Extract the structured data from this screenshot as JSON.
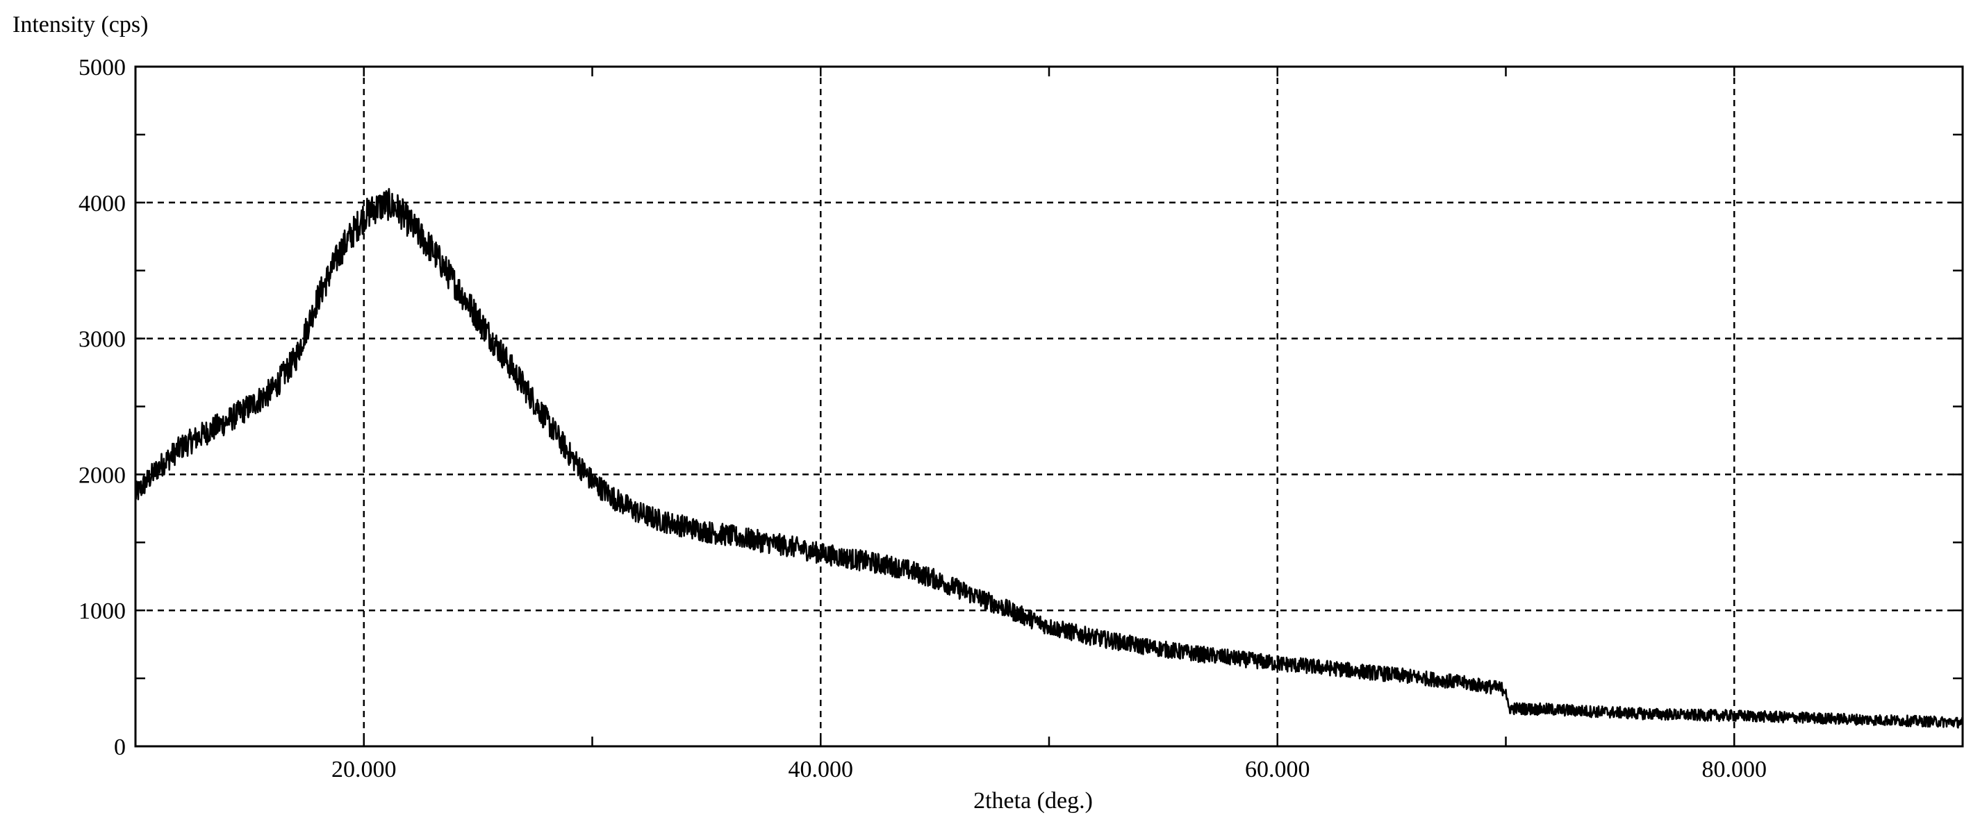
{
  "chart_data": {
    "type": "line",
    "title": "",
    "ylabel": "Intensity (cps)",
    "xlabel": "2theta (deg.)",
    "xlim": [
      10,
      90
    ],
    "ylim": [
      0,
      5000
    ],
    "x_major_ticks": [
      20,
      40,
      60,
      80
    ],
    "x_minor_ticks": [
      10,
      30,
      50,
      70,
      90
    ],
    "x_tick_labels": [
      "20.000",
      "40.000",
      "60.000",
      "80.000"
    ],
    "y_major_ticks": [
      0,
      1000,
      2000,
      3000,
      4000,
      5000
    ],
    "y_minor_ticks": [
      500,
      1500,
      2500,
      3500,
      4500
    ],
    "y_tick_labels": [
      "0",
      "1000",
      "2000",
      "3000",
      "4000",
      "5000"
    ],
    "grid": true,
    "grid_style": "dashed",
    "line_color": "#000000",
    "series": [
      {
        "x": [
          10,
          11,
          12,
          13,
          14,
          15,
          16,
          17,
          18,
          19,
          20,
          20.5,
          21,
          21.5,
          22,
          23,
          24,
          25,
          26,
          27,
          28,
          29,
          30,
          31,
          32,
          33,
          34,
          35,
          36,
          37,
          38,
          39,
          40,
          41,
          42,
          43,
          44,
          45,
          46,
          47,
          48,
          49,
          50,
          52,
          54,
          56,
          58,
          60,
          62,
          64,
          66,
          68,
          70,
          70.1,
          72,
          74,
          76,
          78,
          80,
          82,
          84,
          86,
          88,
          90
        ],
        "y": [
          1850,
          2050,
          2200,
          2300,
          2390,
          2500,
          2620,
          2850,
          3300,
          3650,
          3900,
          3960,
          3990,
          3950,
          3850,
          3650,
          3400,
          3150,
          2900,
          2650,
          2400,
          2150,
          1950,
          1820,
          1720,
          1660,
          1620,
          1580,
          1550,
          1520,
          1490,
          1460,
          1420,
          1390,
          1360,
          1330,
          1290,
          1230,
          1160,
          1090,
          1020,
          950,
          880,
          800,
          740,
          690,
          650,
          610,
          580,
          545,
          510,
          470,
          420,
          280,
          270,
          255,
          240,
          230,
          225,
          215,
          205,
          195,
          185,
          175
        ]
      }
    ]
  }
}
